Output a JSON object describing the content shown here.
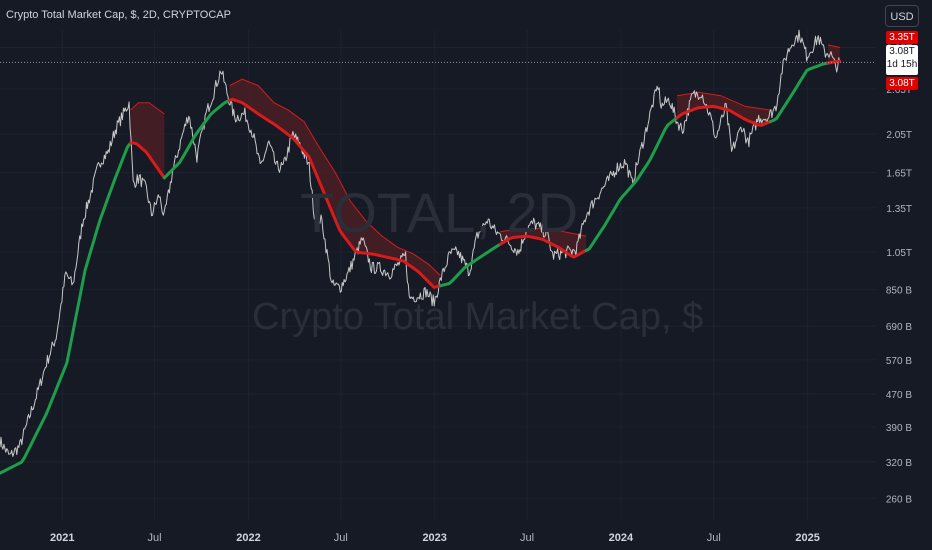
{
  "header": {
    "title": "Crypto Total Market Cap, $, 2D, CRYPTOCAP",
    "currency_button": "USD"
  },
  "watermark": {
    "symbol": "TOTAL, 2D",
    "name": "Crypto Total Market Cap, $"
  },
  "price_labels": {
    "band_top": "3.35T",
    "current": "3.08T",
    "countdown": "1d 15h",
    "last": "3.08T"
  },
  "colors": {
    "background": "#161a25",
    "price": "#c8c8c8",
    "bull": "#1e9e4a",
    "bear": "#d81b1b",
    "band_fill": "#4a1f24",
    "axis_text": "#b2b5be"
  },
  "chart_data": {
    "type": "line",
    "scale": "log",
    "ylim": [
      230000000000,
      3700000000000
    ],
    "xlim": [
      "2020-09-01",
      "2025-05-15"
    ],
    "y_ticks": [
      {
        "v": 3350000000000,
        "label": "3.35T"
      },
      {
        "v": 2650000000000,
        "label": "2.65T"
      },
      {
        "v": 2050000000000,
        "label": "2.05T"
      },
      {
        "v": 1650000000000,
        "label": "1.65T"
      },
      {
        "v": 1350000000000,
        "label": "1.35T"
      },
      {
        "v": 1050000000000,
        "label": "1.05T"
      },
      {
        "v": 850000000000,
        "label": "850 B"
      },
      {
        "v": 690000000000,
        "label": "690 B"
      },
      {
        "v": 570000000000,
        "label": "570 B"
      },
      {
        "v": 470000000000,
        "label": "470 B"
      },
      {
        "v": 390000000000,
        "label": "390 B"
      },
      {
        "v": 320000000000,
        "label": "320 B"
      },
      {
        "v": 260000000000,
        "label": "260 B"
      }
    ],
    "x_ticks": [
      {
        "d": "2021-01-01",
        "label": "2021",
        "bold": true
      },
      {
        "d": "2021-07-01",
        "label": "Jul",
        "bold": false
      },
      {
        "d": "2022-01-01",
        "label": "2022",
        "bold": true
      },
      {
        "d": "2022-07-01",
        "label": "Jul",
        "bold": false
      },
      {
        "d": "2023-01-01",
        "label": "2023",
        "bold": true
      },
      {
        "d": "2023-07-01",
        "label": "Jul",
        "bold": false
      },
      {
        "d": "2024-01-01",
        "label": "2024",
        "bold": true
      },
      {
        "d": "2024-07-01",
        "label": "Jul",
        "bold": false
      },
      {
        "d": "2025-01-01",
        "label": "2025",
        "bold": true
      }
    ],
    "current_price": 3080000000000,
    "series": [
      {
        "role": "price",
        "points": [
          [
            "2020-09-01",
            360
          ],
          [
            "2020-09-20",
            330
          ],
          [
            "2020-10-10",
            350
          ],
          [
            "2020-10-25",
            400
          ],
          [
            "2020-11-15",
            480
          ],
          [
            "2020-12-01",
            560
          ],
          [
            "2020-12-20",
            650
          ],
          [
            "2021-01-08",
            930
          ],
          [
            "2021-01-22",
            870
          ],
          [
            "2021-02-10",
            1250
          ],
          [
            "2021-02-25",
            1450
          ],
          [
            "2021-03-15",
            1750
          ],
          [
            "2021-04-01",
            1850
          ],
          [
            "2021-04-15",
            2100
          ],
          [
            "2021-05-01",
            2300
          ],
          [
            "2021-05-12",
            2450
          ],
          [
            "2021-05-20",
            1550
          ],
          [
            "2021-06-01",
            1600
          ],
          [
            "2021-06-15",
            1500
          ],
          [
            "2021-06-25",
            1300
          ],
          [
            "2021-07-10",
            1450
          ],
          [
            "2021-07-20",
            1280
          ],
          [
            "2021-08-05",
            1650
          ],
          [
            "2021-08-25",
            2050
          ],
          [
            "2021-09-06",
            2300
          ],
          [
            "2021-09-22",
            1800
          ],
          [
            "2021-10-10",
            2300
          ],
          [
            "2021-10-25",
            2600
          ],
          [
            "2021-11-08",
            2950
          ],
          [
            "2021-11-20",
            2600
          ],
          [
            "2021-12-05",
            2250
          ],
          [
            "2021-12-25",
            2300
          ],
          [
            "2022-01-10",
            2050
          ],
          [
            "2022-01-24",
            1700
          ],
          [
            "2022-02-10",
            1950
          ],
          [
            "2022-02-25",
            1700
          ],
          [
            "2022-03-10",
            1700
          ],
          [
            "2022-03-29",
            2050
          ],
          [
            "2022-04-15",
            1900
          ],
          [
            "2022-04-30",
            1700
          ],
          [
            "2022-05-10",
            1300
          ],
          [
            "2022-05-25",
            1250
          ],
          [
            "2022-06-14",
            870
          ],
          [
            "2022-06-30",
            860
          ],
          [
            "2022-07-15",
            930
          ],
          [
            "2022-08-12",
            1130
          ],
          [
            "2022-08-30",
            960
          ],
          [
            "2022-09-15",
            960
          ],
          [
            "2022-10-05",
            930
          ],
          [
            "2022-10-25",
            990
          ],
          [
            "2022-11-05",
            1030
          ],
          [
            "2022-11-12",
            810
          ],
          [
            "2022-11-30",
            820
          ],
          [
            "2022-12-15",
            840
          ],
          [
            "2022-12-31",
            790
          ],
          [
            "2023-01-14",
            910
          ],
          [
            "2023-01-31",
            1040
          ],
          [
            "2023-02-15",
            1050
          ],
          [
            "2023-03-10",
            940
          ],
          [
            "2023-03-25",
            1150
          ],
          [
            "2023-04-14",
            1260
          ],
          [
            "2023-04-30",
            1180
          ],
          [
            "2023-05-20",
            1130
          ],
          [
            "2023-06-15",
            1050
          ],
          [
            "2023-06-30",
            1200
          ],
          [
            "2023-07-14",
            1240
          ],
          [
            "2023-08-10",
            1160
          ],
          [
            "2023-08-20",
            1030
          ],
          [
            "2023-09-15",
            1050
          ],
          [
            "2023-10-05",
            1060
          ],
          [
            "2023-10-25",
            1300
          ],
          [
            "2023-11-15",
            1440
          ],
          [
            "2023-12-08",
            1580
          ],
          [
            "2023-12-25",
            1700
          ],
          [
            "2024-01-10",
            1750
          ],
          [
            "2024-01-23",
            1550
          ],
          [
            "2024-02-15",
            2000
          ],
          [
            "2024-03-04",
            2450
          ],
          [
            "2024-03-14",
            2700
          ],
          [
            "2024-03-20",
            2400
          ],
          [
            "2024-04-05",
            2500
          ],
          [
            "2024-04-20",
            2200
          ],
          [
            "2024-05-01",
            2100
          ],
          [
            "2024-05-20",
            2550
          ],
          [
            "2024-06-07",
            2600
          ],
          [
            "2024-06-25",
            2250
          ],
          [
            "2024-07-05",
            2000
          ],
          [
            "2024-07-25",
            2400
          ],
          [
            "2024-08-05",
            1850
          ],
          [
            "2024-08-25",
            2150
          ],
          [
            "2024-09-06",
            1950
          ],
          [
            "2024-09-27",
            2250
          ],
          [
            "2024-10-15",
            2250
          ],
          [
            "2024-10-31",
            2400
          ],
          [
            "2024-11-12",
            2950
          ],
          [
            "2024-11-22",
            3250
          ],
          [
            "2024-12-05",
            3500
          ],
          [
            "2024-12-17",
            3600
          ],
          [
            "2024-12-30",
            3200
          ],
          [
            "2025-01-07",
            3300
          ],
          [
            "2025-01-22",
            3550
          ],
          [
            "2025-02-03",
            3250
          ],
          [
            "2025-02-14",
            3250
          ],
          [
            "2025-02-25",
            3000
          ],
          [
            "2025-03-05",
            3080
          ]
        ]
      },
      {
        "role": "trend-line",
        "points": [
          [
            "2020-09-01",
            300
          ],
          [
            "2020-10-15",
            320
          ],
          [
            "2020-12-01",
            420
          ],
          [
            "2021-01-10",
            560
          ],
          [
            "2021-02-15",
            950
          ],
          [
            "2021-03-15",
            1250
          ],
          [
            "2021-04-15",
            1600
          ],
          [
            "2021-05-12",
            1950
          ],
          [
            "2021-05-25",
            1950
          ],
          [
            "2021-06-15",
            1850
          ],
          [
            "2021-07-20",
            1600
          ],
          [
            "2021-08-20",
            1750
          ],
          [
            "2021-09-20",
            2050
          ],
          [
            "2021-10-20",
            2300
          ],
          [
            "2021-11-15",
            2450
          ],
          [
            "2021-11-30",
            2500
          ],
          [
            "2021-12-20",
            2450
          ],
          [
            "2022-01-20",
            2300
          ],
          [
            "2022-02-25",
            2150
          ],
          [
            "2022-03-30",
            2000
          ],
          [
            "2022-04-30",
            1800
          ],
          [
            "2022-05-31",
            1450
          ],
          [
            "2022-06-30",
            1180
          ],
          [
            "2022-07-31",
            1050
          ],
          [
            "2022-08-31",
            1040
          ],
          [
            "2022-09-30",
            1020
          ],
          [
            "2022-10-31",
            1000
          ],
          [
            "2022-11-30",
            940
          ],
          [
            "2022-12-31",
            860
          ],
          [
            "2023-01-31",
            880
          ],
          [
            "2023-02-28",
            960
          ],
          [
            "2023-03-31",
            1020
          ],
          [
            "2023-04-30",
            1080
          ],
          [
            "2023-05-31",
            1140
          ],
          [
            "2023-06-30",
            1150
          ],
          [
            "2023-07-31",
            1130
          ],
          [
            "2023-08-31",
            1080
          ],
          [
            "2023-09-30",
            1020
          ],
          [
            "2023-10-31",
            1070
          ],
          [
            "2023-11-30",
            1220
          ],
          [
            "2023-12-31",
            1420
          ],
          [
            "2024-01-31",
            1570
          ],
          [
            "2024-02-28",
            1780
          ],
          [
            "2024-03-31",
            2150
          ],
          [
            "2024-04-30",
            2300
          ],
          [
            "2024-05-31",
            2380
          ],
          [
            "2024-06-30",
            2400
          ],
          [
            "2024-07-31",
            2350
          ],
          [
            "2024-08-31",
            2230
          ],
          [
            "2024-09-30",
            2150
          ],
          [
            "2024-10-31",
            2230
          ],
          [
            "2024-11-30",
            2550
          ],
          [
            "2024-12-31",
            2950
          ],
          [
            "2025-01-31",
            3050
          ],
          [
            "2025-02-28",
            3100
          ],
          [
            "2025-03-05",
            3100
          ]
        ],
        "regimes": [
          {
            "from": "2020-09-01",
            "to": "2021-05-15",
            "state": "bull"
          },
          {
            "from": "2021-05-15",
            "to": "2021-07-20",
            "state": "bear"
          },
          {
            "from": "2021-07-20",
            "to": "2021-11-25",
            "state": "bull"
          },
          {
            "from": "2021-11-25",
            "to": "2023-01-12",
            "state": "bear"
          },
          {
            "from": "2023-01-12",
            "to": "2023-05-10",
            "state": "bull"
          },
          {
            "from": "2023-05-10",
            "to": "2023-10-25",
            "state": "bear"
          },
          {
            "from": "2023-10-25",
            "to": "2024-04-20",
            "state": "bull"
          },
          {
            "from": "2024-04-20",
            "to": "2024-10-20",
            "state": "bear"
          },
          {
            "from": "2024-10-20",
            "to": "2025-02-10",
            "state": "bull"
          },
          {
            "from": "2025-02-10",
            "to": "2025-03-05",
            "state": "bear"
          }
        ]
      },
      {
        "role": "band-upper",
        "segments": [
          [
            [
              "2021-05-15",
              2350
            ],
            [
              "2021-05-30",
              2450
            ],
            [
              "2021-06-20",
              2450
            ],
            [
              "2021-07-20",
              2300
            ]
          ],
          [
            [
              "2021-11-25",
              2700
            ],
            [
              "2021-12-20",
              2800
            ],
            [
              "2022-01-20",
              2700
            ],
            [
              "2022-02-20",
              2450
            ],
            [
              "2022-03-20",
              2350
            ],
            [
              "2022-04-20",
              2200
            ],
            [
              "2022-05-20",
              1900
            ],
            [
              "2022-06-20",
              1650
            ],
            [
              "2022-07-20",
              1400
            ],
            [
              "2022-08-20",
              1250
            ],
            [
              "2022-09-20",
              1150
            ],
            [
              "2022-10-20",
              1080
            ],
            [
              "2022-11-20",
              1040
            ],
            [
              "2022-12-20",
              980
            ],
            [
              "2023-01-12",
              920
            ]
          ],
          [
            [
              "2023-05-10",
              1180
            ],
            [
              "2023-06-20",
              1200
            ],
            [
              "2023-07-31",
              1200
            ],
            [
              "2023-09-10",
              1180
            ],
            [
              "2023-10-25",
              1150
            ]
          ],
          [
            [
              "2024-04-20",
              2550
            ],
            [
              "2024-06-01",
              2600
            ],
            [
              "2024-07-15",
              2550
            ],
            [
              "2024-09-01",
              2400
            ],
            [
              "2024-10-20",
              2350
            ]
          ],
          [
            [
              "2025-02-10",
              3400
            ],
            [
              "2025-03-05",
              3350
            ]
          ]
        ]
      }
    ]
  }
}
